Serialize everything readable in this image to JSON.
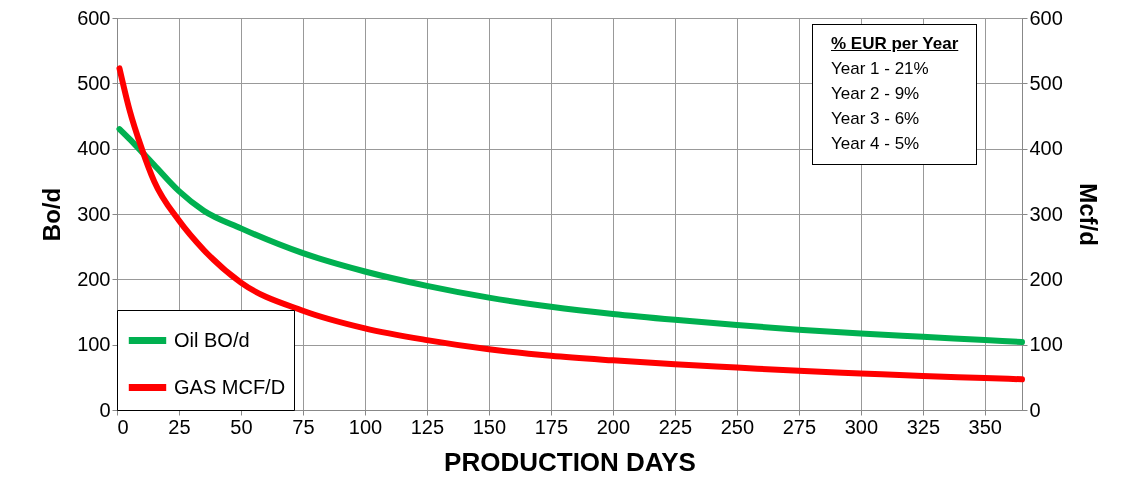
{
  "chart_data": {
    "type": "line",
    "xlabel": "PRODUCTION DAYS",
    "ylabel": "Bo/d",
    "y2label": "Mcf/d",
    "xlim": [
      0,
      365
    ],
    "xticks": [
      0,
      25,
      50,
      75,
      100,
      125,
      150,
      175,
      200,
      225,
      250,
      275,
      300,
      325,
      350
    ],
    "ylim": [
      0,
      600
    ],
    "yticks": [
      0,
      100,
      200,
      300,
      400,
      500,
      600
    ],
    "y2lim": [
      0,
      600
    ],
    "y2ticks": [
      0,
      100,
      200,
      300,
      400,
      500,
      600
    ],
    "grid": true,
    "legend": "bottom left",
    "marker": "none",
    "line_style": "solid",
    "x": [
      1,
      5,
      10,
      15,
      25,
      35,
      50,
      75,
      100,
      125,
      150,
      175,
      200,
      225,
      250,
      275,
      300,
      325,
      350,
      365
    ],
    "series": [
      {
        "name": "Oil BO/d",
        "color": "#00b050",
        "values": [
          430,
          415,
          395,
          375,
          335,
          305,
          278,
          240,
          212,
          190,
          172,
          158,
          147,
          138,
          130,
          123,
          117,
          112,
          107,
          104
        ]
      },
      {
        "name": "GAS MCF/D",
        "color": "#ff0000",
        "axis": "y2",
        "values": [
          523,
          460,
          400,
          350,
          290,
          245,
          195,
          152,
          125,
          107,
          93,
          83,
          76,
          70,
          65,
          60,
          56,
          52,
          49,
          47
        ]
      }
    ],
    "annotations": [
      "% EUR per Year",
      "Year 1 - 21%",
      "Year 2 - 9%",
      "Year 3 - 6%",
      "Year 4 - 5%"
    ]
  }
}
